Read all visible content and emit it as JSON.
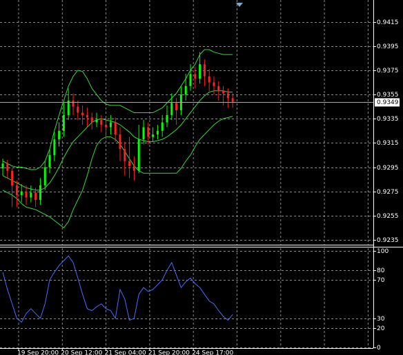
{
  "chart_data": {
    "type": "candlestick",
    "ylim": [
      0.9231,
      0.9433
    ],
    "yticks": [
      0.9235,
      0.9255,
      0.9275,
      0.9295,
      0.9315,
      0.9335,
      0.9355,
      0.9375,
      0.9395,
      0.9415
    ],
    "last_price": 0.9349,
    "up_color": "#00ff00",
    "down_color": "#ff2020",
    "grid": true,
    "xlabels": [
      "19 Sep 20:00",
      "20 Sep 12:00",
      "21 Sep 04:00",
      "21 Sep 20:00",
      "24 Sep 17:00"
    ],
    "candles": [
      [
        0.9294,
        0.9302,
        0.9288,
        0.9298
      ],
      [
        0.9298,
        0.9301,
        0.9286,
        0.9292
      ],
      [
        0.9292,
        0.9294,
        0.9262,
        0.928
      ],
      [
        0.928,
        0.9284,
        0.9262,
        0.9272
      ],
      [
        0.9272,
        0.9281,
        0.9266,
        0.9275
      ],
      [
        0.9275,
        0.928,
        0.9264,
        0.927
      ],
      [
        0.927,
        0.928,
        0.9266,
        0.9274
      ],
      [
        0.9274,
        0.9278,
        0.9262,
        0.9268
      ],
      [
        0.9268,
        0.9286,
        0.9264,
        0.928
      ],
      [
        0.928,
        0.93,
        0.9276,
        0.9295
      ],
      [
        0.9295,
        0.931,
        0.929,
        0.9305
      ],
      [
        0.9305,
        0.9324,
        0.93,
        0.9318
      ],
      [
        0.9318,
        0.9332,
        0.9312,
        0.9325
      ],
      [
        0.9325,
        0.9348,
        0.932,
        0.9338
      ],
      [
        0.9338,
        0.936,
        0.9334,
        0.935
      ],
      [
        0.935,
        0.9356,
        0.9338,
        0.9345
      ],
      [
        0.9345,
        0.935,
        0.9334,
        0.934
      ],
      [
        0.934,
        0.9346,
        0.933,
        0.9338
      ],
      [
        0.9338,
        0.9344,
        0.9328,
        0.9336
      ],
      [
        0.9336,
        0.934,
        0.9326,
        0.9332
      ],
      [
        0.9332,
        0.934,
        0.9328,
        0.9334
      ],
      [
        0.9334,
        0.9338,
        0.9324,
        0.933
      ],
      [
        0.933,
        0.9336,
        0.9318,
        0.9328
      ],
      [
        0.9328,
        0.9338,
        0.9322,
        0.9332
      ],
      [
        0.9332,
        0.9336,
        0.9316,
        0.9322
      ],
      [
        0.9322,
        0.9328,
        0.93,
        0.931
      ],
      [
        0.931,
        0.9316,
        0.9288,
        0.93
      ],
      [
        0.93,
        0.932,
        0.9286,
        0.9296
      ],
      [
        0.9296,
        0.9304,
        0.9284,
        0.9292
      ],
      [
        0.9292,
        0.933,
        0.929,
        0.9318
      ],
      [
        0.9318,
        0.9334,
        0.9314,
        0.9328
      ],
      [
        0.9328,
        0.9332,
        0.9314,
        0.932
      ],
      [
        0.932,
        0.9328,
        0.9316,
        0.9322
      ],
      [
        0.9322,
        0.933,
        0.9318,
        0.9325
      ],
      [
        0.9325,
        0.9338,
        0.932,
        0.9332
      ],
      [
        0.9332,
        0.9346,
        0.9328,
        0.9338
      ],
      [
        0.9338,
        0.9356,
        0.9334,
        0.9348
      ],
      [
        0.9348,
        0.9352,
        0.933,
        0.9342
      ],
      [
        0.9342,
        0.9362,
        0.9338,
        0.9355
      ],
      [
        0.9355,
        0.9372,
        0.935,
        0.9362
      ],
      [
        0.9362,
        0.938,
        0.9358,
        0.9372
      ],
      [
        0.9372,
        0.9378,
        0.936,
        0.9368
      ],
      [
        0.9368,
        0.939,
        0.9364,
        0.938
      ],
      [
        0.938,
        0.9384,
        0.9362,
        0.937
      ],
      [
        0.937,
        0.9376,
        0.9358,
        0.9365
      ],
      [
        0.9365,
        0.937,
        0.9355,
        0.9362
      ],
      [
        0.9362,
        0.9366,
        0.935,
        0.9358
      ],
      [
        0.9358,
        0.9362,
        0.9346,
        0.9356
      ],
      [
        0.9356,
        0.936,
        0.9344,
        0.9352
      ],
      [
        0.9352,
        0.9356,
        0.9344,
        0.9349
      ]
    ],
    "bands": [
      {
        "color": "#33dd33",
        "values": [
          0.93,
          0.9298,
          0.9296,
          0.9295,
          0.9295,
          0.9294,
          0.9293,
          0.9293,
          0.9295,
          0.93,
          0.931,
          0.9325,
          0.9338,
          0.935,
          0.9362,
          0.937,
          0.9375,
          0.9374,
          0.9368,
          0.936,
          0.9355,
          0.935,
          0.9347,
          0.9346,
          0.9346,
          0.9346,
          0.9344,
          0.9342,
          0.934,
          0.934,
          0.934,
          0.934,
          0.934,
          0.9342,
          0.9344,
          0.9348,
          0.9352,
          0.9356,
          0.9362,
          0.9368,
          0.9375,
          0.938,
          0.9388,
          0.9392,
          0.9392,
          0.939,
          0.9389,
          0.9388,
          0.9388,
          0.9388
        ]
      },
      {
        "color": "#33dd33",
        "values": [
          0.9288,
          0.9286,
          0.9284,
          0.9282,
          0.928,
          0.9278,
          0.9277,
          0.9276,
          0.9276,
          0.9278,
          0.9282,
          0.9288,
          0.9295,
          0.9303,
          0.931,
          0.9316,
          0.932,
          0.9324,
          0.9328,
          0.9332,
          0.9334,
          0.9335,
          0.9334,
          0.9333,
          0.9332,
          0.933,
          0.9327,
          0.9324,
          0.932,
          0.9318,
          0.9317,
          0.9316,
          0.9316,
          0.9317,
          0.9318,
          0.932,
          0.9323,
          0.9326,
          0.933,
          0.9335,
          0.934,
          0.9345,
          0.935,
          0.9354,
          0.9357,
          0.9358,
          0.9358,
          0.9358,
          0.9357,
          0.9357
        ]
      },
      {
        "color": "#33dd33",
        "values": [
          0.9276,
          0.9274,
          0.9272,
          0.9269,
          0.9265,
          0.9262,
          0.9261,
          0.926,
          0.9258,
          0.9256,
          0.9254,
          0.9251,
          0.9248,
          0.9245,
          0.925,
          0.926,
          0.9268,
          0.9276,
          0.9288,
          0.9302,
          0.9313,
          0.9318,
          0.932,
          0.932,
          0.9318,
          0.9314,
          0.9308,
          0.9302,
          0.9296,
          0.9292,
          0.929,
          0.929,
          0.929,
          0.929,
          0.929,
          0.929,
          0.929,
          0.929,
          0.9294,
          0.93,
          0.9305,
          0.9312,
          0.9318,
          0.9322,
          0.9326,
          0.933,
          0.9333,
          0.9335,
          0.9336,
          0.9337
        ]
      }
    ],
    "indicator": {
      "color": "#4a6cff",
      "ylim": [
        -1,
        103
      ],
      "yticks": [
        0,
        20,
        30,
        70,
        80,
        100
      ],
      "values": [
        78,
        60,
        45,
        30,
        26,
        35,
        40,
        35,
        30,
        45,
        70,
        78,
        85,
        90,
        95,
        88,
        72,
        55,
        40,
        38,
        42,
        45,
        40,
        38,
        30,
        60,
        50,
        28,
        30,
        55,
        62,
        58,
        60,
        65,
        70,
        80,
        88,
        75,
        62,
        68,
        72,
        66,
        62,
        55,
        48,
        45,
        38,
        32,
        28,
        34
      ]
    }
  }
}
